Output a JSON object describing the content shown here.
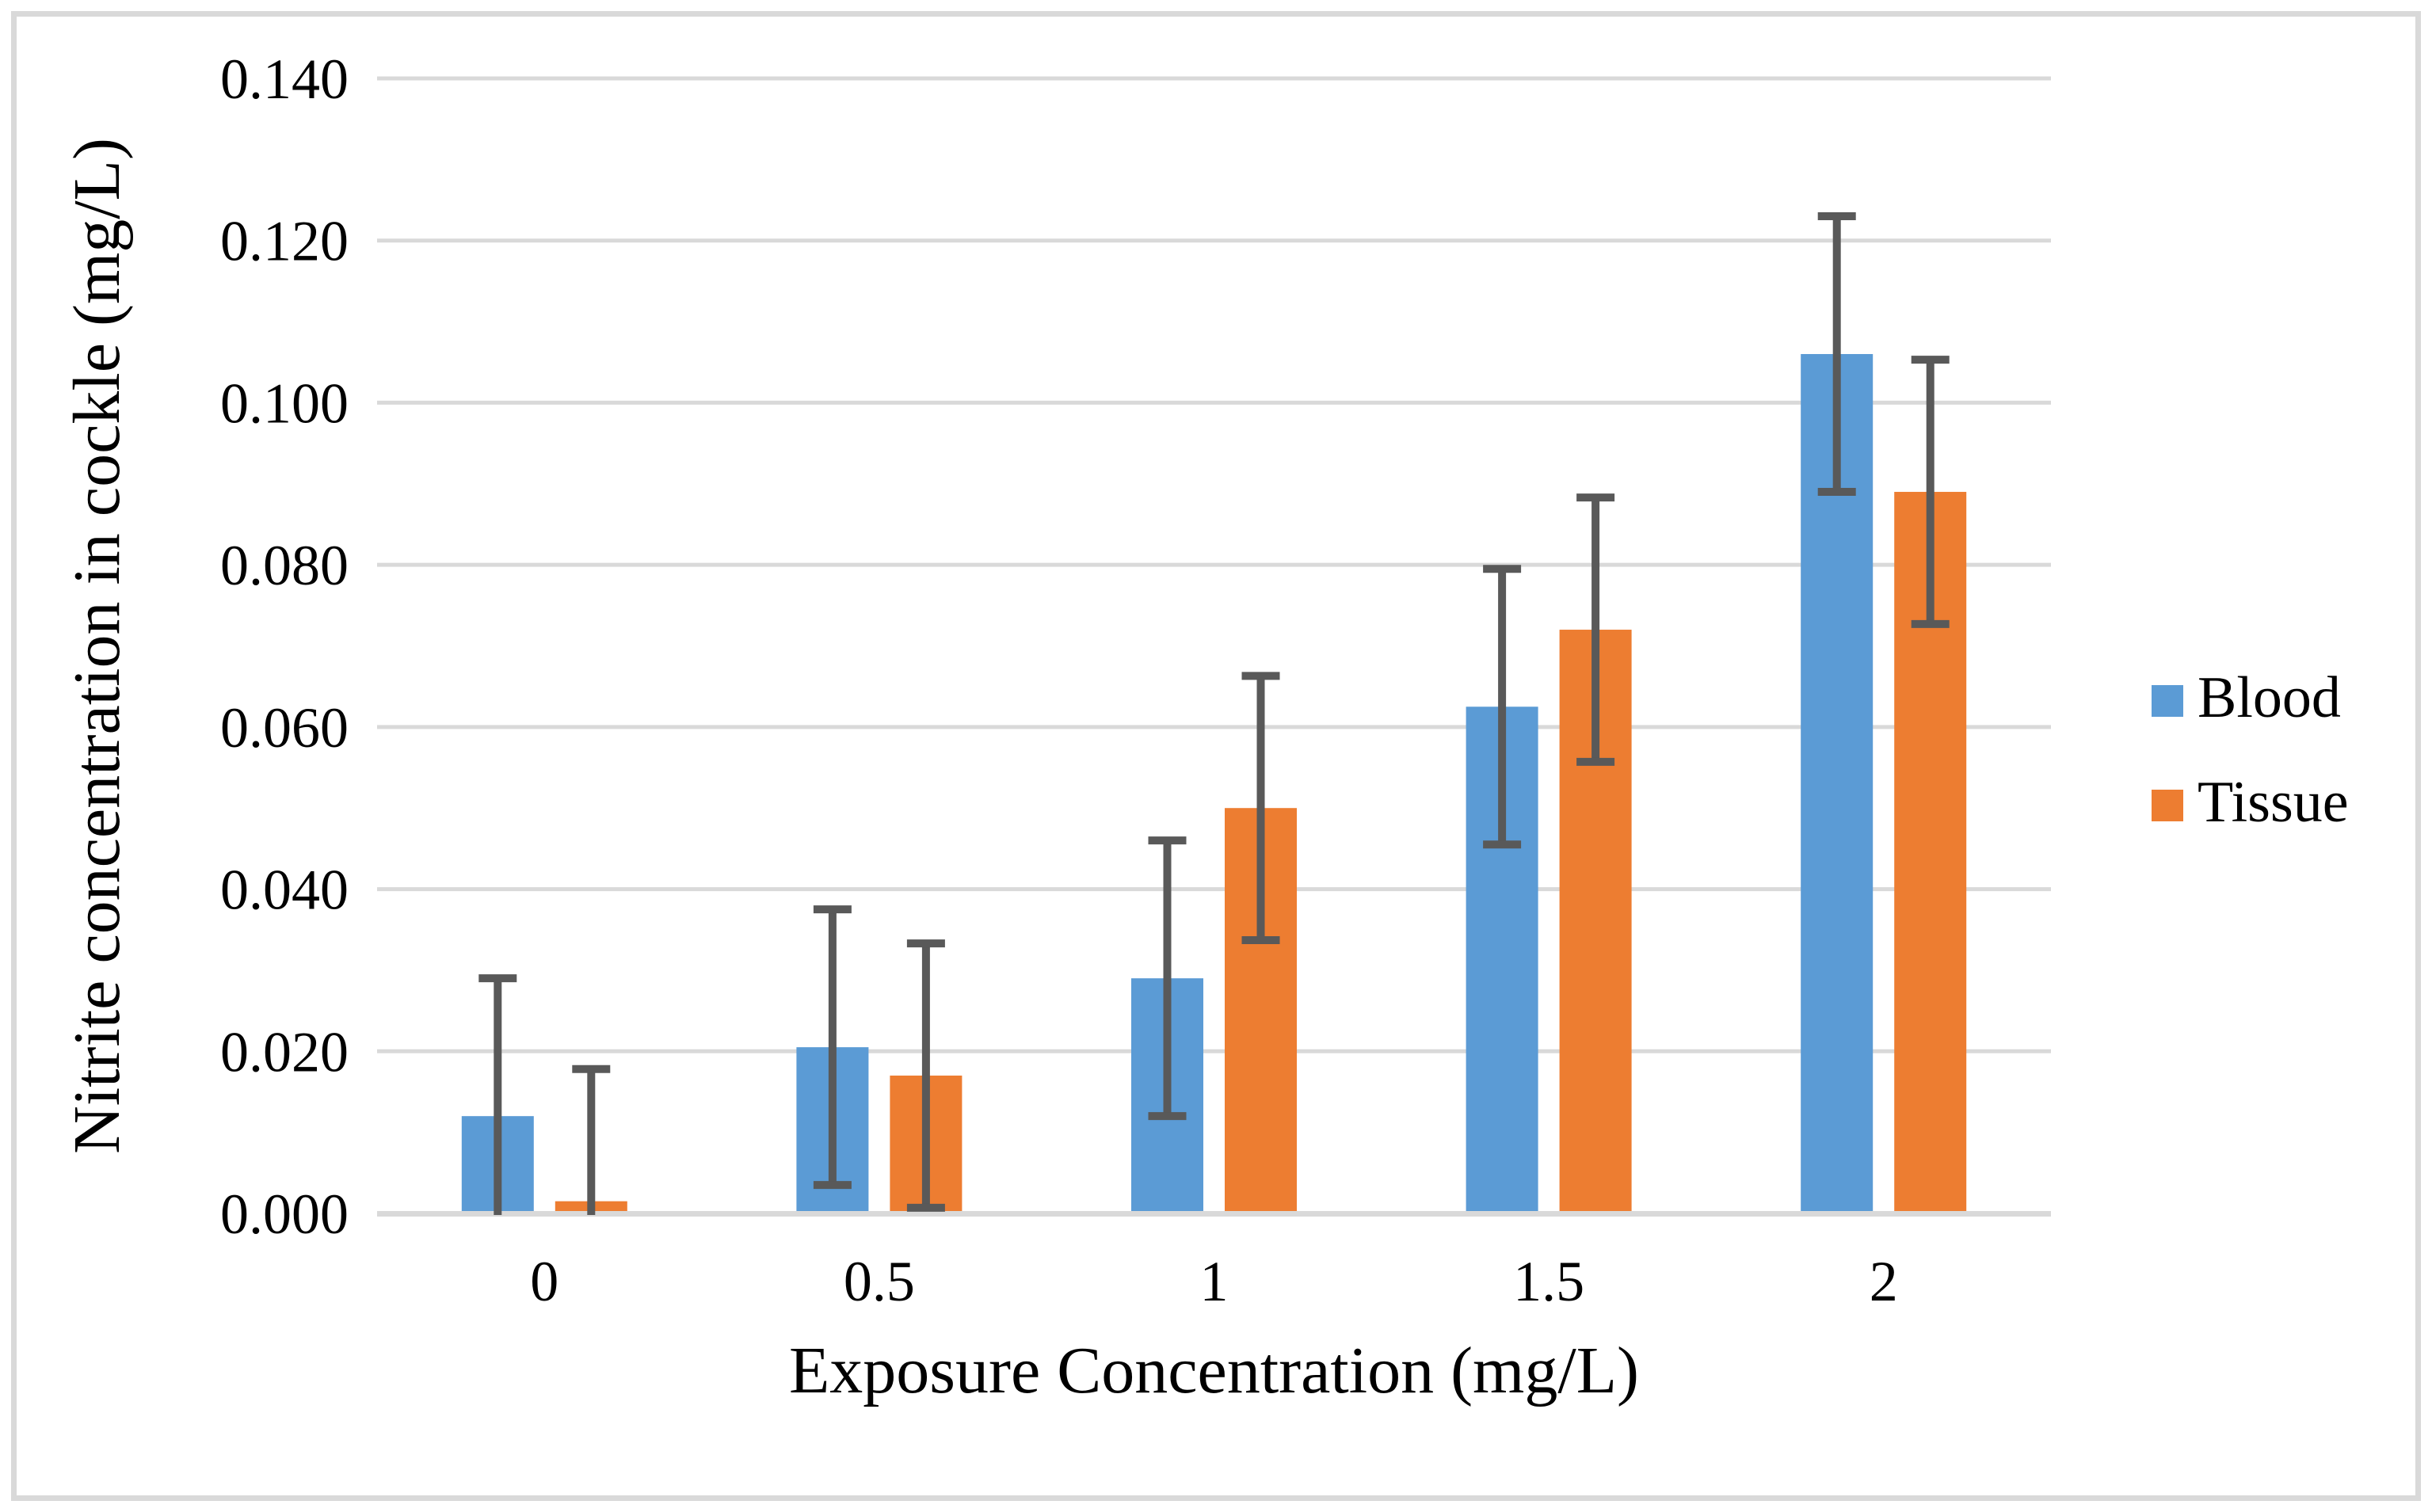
{
  "figure": {
    "background": "#FFFFFF",
    "border_color": "#D9D9D9"
  },
  "chart_data": {
    "type": "bar",
    "title": "",
    "xlabel": "Exposure Concentration (mg/L)",
    "ylabel": "Nitrite concentration in cockle (mg/L)",
    "categories": [
      "0",
      "0.5",
      "1",
      "1.5",
      "2"
    ],
    "series": [
      {
        "name": "Blood",
        "color": "#5B9BD5",
        "values": [
          0.012,
          0.0205,
          0.029,
          0.0625,
          0.106
        ],
        "error": 0.017
      },
      {
        "name": "Tissue",
        "color": "#ED7D31",
        "values": [
          0.0015,
          0.017,
          0.05,
          0.072,
          0.089
        ],
        "error": 0.0163
      }
    ],
    "ylim": [
      0,
      0.14
    ],
    "y_tick_step": 0.02,
    "y_tick_labels": [
      "0.000",
      "0.020",
      "0.040",
      "0.060",
      "0.080",
      "0.100",
      "0.120",
      "0.140"
    ],
    "grid": true,
    "gridline_color": "#D9D9D9",
    "axis_line_color": "#D9D9D9",
    "error_bar_color": "#595959",
    "legend_position": "right-middle",
    "legend_labels": [
      "Blood",
      "Tissue"
    ]
  }
}
